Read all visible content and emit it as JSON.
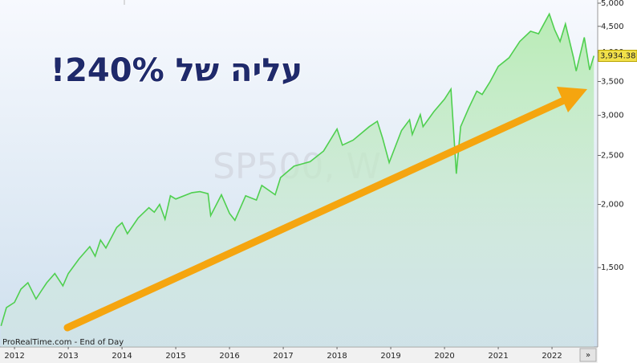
{
  "chart_data": {
    "type": "line",
    "title": "SP500, W",
    "annotation": "עליה של 240%!",
    "footer": "ProRealTime.com - End of Day",
    "nav_button": "»",
    "log_scale": true,
    "xlim": [
      2011.73,
      2022.85
    ],
    "xticks": [
      2012,
      2013,
      2014,
      2015,
      2016,
      2017,
      2018,
      2019,
      2020,
      2021,
      2022
    ],
    "ylim": [
      1045,
      5073
    ],
    "yticks": [
      {
        "value": 1500,
        "label": "1,500"
      },
      {
        "value": 2000,
        "label": "2,000"
      },
      {
        "value": 2500,
        "label": "2,500"
      },
      {
        "value": 3000,
        "label": "3,000"
      },
      {
        "value": 3500,
        "label": "3,500"
      },
      {
        "value": 4000,
        "label": "4,000"
      },
      {
        "value": 4500,
        "label": "4,500"
      },
      {
        "value": 5000,
        "label": "5,000"
      }
    ],
    "x": [
      2011.75,
      2011.85,
      2012.0,
      2012.12,
      2012.25,
      2012.4,
      2012.5,
      2012.6,
      2012.75,
      2012.9,
      2013.0,
      2013.2,
      2013.4,
      2013.5,
      2013.6,
      2013.7,
      2013.9,
      2014.0,
      2014.1,
      2014.3,
      2014.5,
      2014.6,
      2014.7,
      2014.8,
      2014.9,
      2015.0,
      2015.3,
      2015.45,
      2015.6,
      2015.65,
      2015.85,
      2016.0,
      2016.1,
      2016.3,
      2016.5,
      2016.6,
      2016.85,
      2016.95,
      2017.2,
      2017.5,
      2017.75,
      2018.0,
      2018.1,
      2018.3,
      2018.6,
      2018.75,
      2018.85,
      2018.97,
      2019.2,
      2019.35,
      2019.4,
      2019.55,
      2019.6,
      2019.8,
      2020.0,
      2020.12,
      2020.22,
      2020.3,
      2020.45,
      2020.6,
      2020.7,
      2020.85,
      2021.0,
      2021.2,
      2021.4,
      2021.6,
      2021.75,
      2021.95,
      2022.05,
      2022.15,
      2022.25,
      2022.4,
      2022.45,
      2022.6,
      2022.7,
      2022.78
    ],
    "series": [
      {
        "name": "SP500",
        "color": "#4fcf4f",
        "values": [
          1150,
          1250,
          1280,
          1360,
          1400,
          1300,
          1350,
          1400,
          1460,
          1380,
          1460,
          1560,
          1650,
          1580,
          1700,
          1640,
          1800,
          1840,
          1750,
          1880,
          1970,
          1930,
          2000,
          1870,
          2080,
          2050,
          2110,
          2120,
          2100,
          1900,
          2090,
          1920,
          1860,
          2080,
          2040,
          2180,
          2090,
          2260,
          2380,
          2430,
          2550,
          2820,
          2620,
          2680,
          2850,
          2920,
          2700,
          2420,
          2800,
          2940,
          2750,
          3010,
          2850,
          3050,
          3230,
          3380,
          2300,
          2850,
          3100,
          3350,
          3300,
          3500,
          3750,
          3900,
          4200,
          4400,
          4350,
          4760,
          4430,
          4200,
          4550,
          3900,
          3670,
          4280,
          3690,
          3934.38
        ],
        "last_value_label": "3,934.38"
      }
    ]
  }
}
